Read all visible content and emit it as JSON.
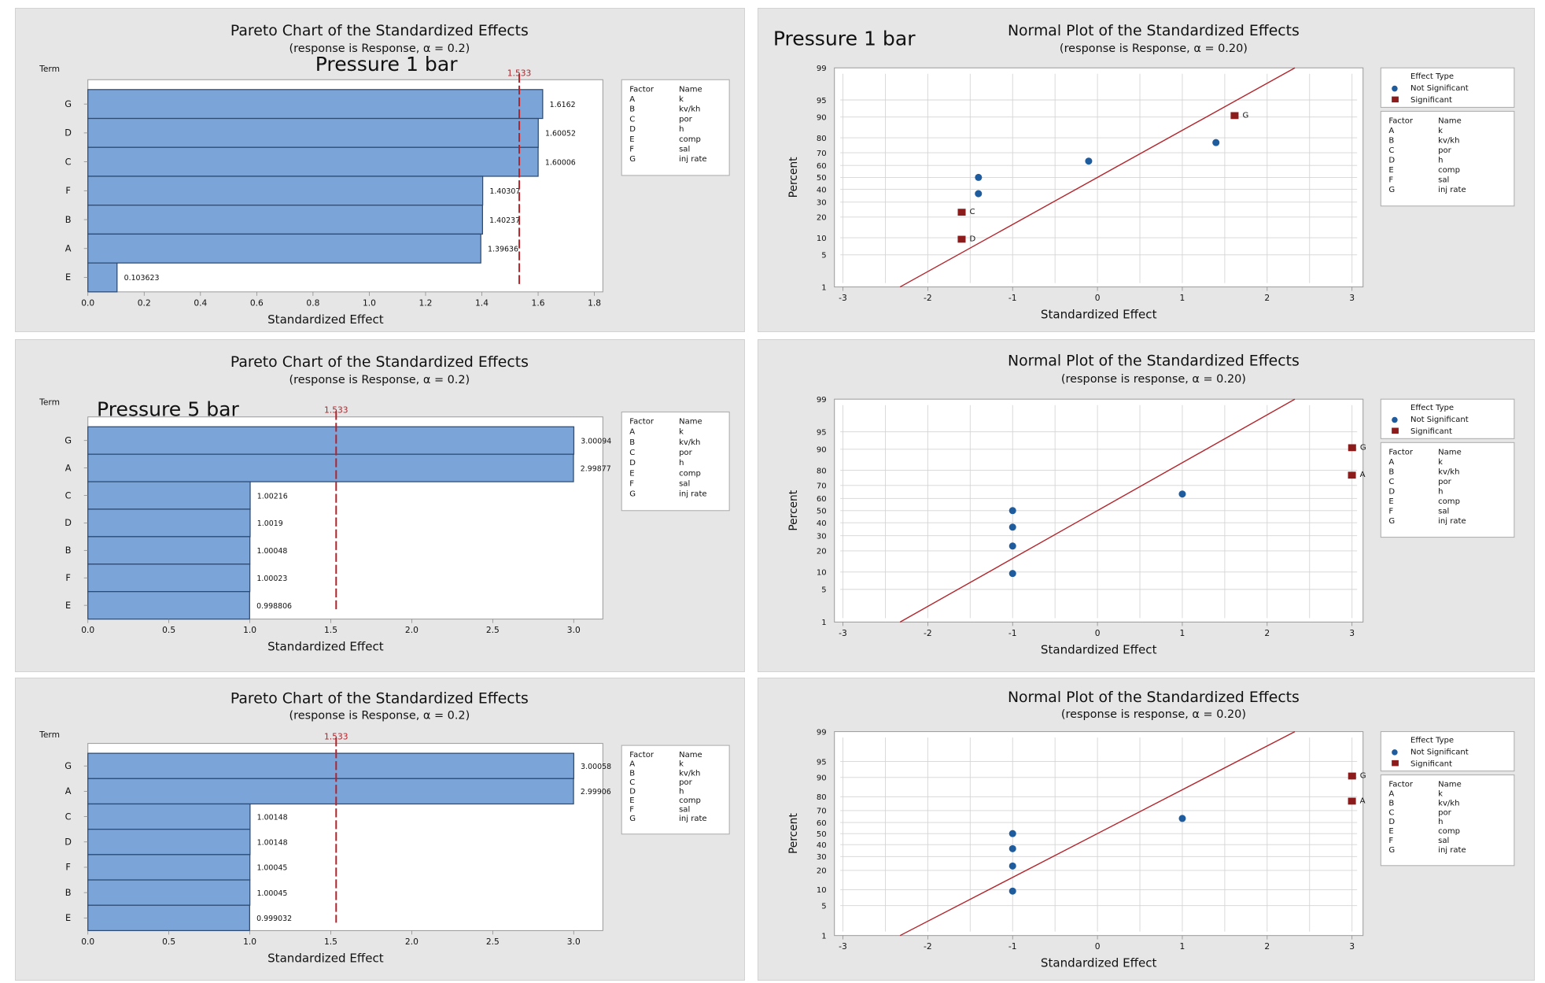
{
  "chart_data": [
    {
      "type": "bar",
      "orientation": "horizontal",
      "title": "Pareto Chart of the Standardized Effects",
      "subtitle": "(response is Response, α = 0.2)",
      "annotation": "Pressure 1 bar",
      "ylabel": "Term",
      "xlabel": "Standardized Effect",
      "categories": [
        "G",
        "D",
        "C",
        "F",
        "B",
        "A",
        "E"
      ],
      "values": [
        1.6162,
        1.60052,
        1.60006,
        1.40307,
        1.40237,
        1.39636,
        0.103623
      ],
      "value_labels": [
        "1.6162",
        "1.60052",
        "1.60006",
        "1.40307",
        "1.40237",
        "1.39636",
        "0.103623"
      ],
      "reference_line": {
        "value": 1.533,
        "label": "1.533"
      },
      "xlim": [
        0,
        1.83
      ],
      "xticks": [
        0,
        0.2,
        0.4,
        0.6,
        0.8,
        1.0,
        1.2,
        1.4,
        1.6,
        1.8
      ],
      "xtick_labels": [
        "0.0",
        "0.2",
        "0.4",
        "0.6",
        "0.8",
        "1.0",
        "1.2",
        "1.4",
        "1.6",
        "1.8"
      ],
      "legend": {
        "headers": [
          "Factor",
          "Name"
        ],
        "rows": [
          [
            "A",
            "k"
          ],
          [
            "B",
            "kv/kh"
          ],
          [
            "C",
            "por"
          ],
          [
            "D",
            "h"
          ],
          [
            "E",
            "comp"
          ],
          [
            "F",
            "sal"
          ],
          [
            "G",
            "inj rate"
          ]
        ]
      },
      "grid": false
    },
    {
      "type": "scatter",
      "title": "Normal Plot of the Standardized Effects",
      "subtitle": "(response is Response, α = 0.20)",
      "annotation": "Pressure 1 bar",
      "xlabel": "Standardized Effect",
      "ylabel": "Percent",
      "yscale": "normal-probability",
      "xlim": [
        -3.1,
        3.13
      ],
      "xticks": [
        -3,
        -2,
        -1,
        0,
        1,
        2,
        3
      ],
      "xtick_labels": [
        "-3",
        "-2",
        "-1",
        "0",
        "1",
        "2",
        "3"
      ],
      "yticks": [
        1,
        5,
        10,
        20,
        30,
        40,
        50,
        60,
        70,
        80,
        90,
        95,
        99
      ],
      "ytick_labels": [
        "1",
        "5",
        "10",
        "20",
        "30",
        "40",
        "50",
        "60",
        "70",
        "80",
        "90",
        "95",
        "99"
      ],
      "reference_line": {
        "mean": 0,
        "sd": 1
      },
      "points": [
        {
          "x": -1.60052,
          "y": 9.46,
          "type": "Significant",
          "label": "D"
        },
        {
          "x": -1.60006,
          "y": 22.97,
          "type": "Significant",
          "label": "C"
        },
        {
          "x": -1.40307,
          "y": 36.49,
          "type": "Not Significant",
          "label": ""
        },
        {
          "x": -1.40237,
          "y": 50.0,
          "type": "Not Significant",
          "label": ""
        },
        {
          "x": -0.103623,
          "y": 63.51,
          "type": "Not Significant",
          "label": ""
        },
        {
          "x": 1.39636,
          "y": 77.03,
          "type": "Not Significant",
          "label": ""
        },
        {
          "x": 1.6162,
          "y": 90.54,
          "type": "Significant",
          "label": "G"
        }
      ],
      "legend": {
        "title": "Effect Type",
        "entries": [
          "Not Significant",
          "Significant"
        ],
        "headers": [
          "Factor",
          "Name"
        ],
        "rows": [
          [
            "A",
            "k"
          ],
          [
            "B",
            "kv/kh"
          ],
          [
            "C",
            "por"
          ],
          [
            "D",
            "h"
          ],
          [
            "E",
            "comp"
          ],
          [
            "F",
            "sal"
          ],
          [
            "G",
            "inj rate"
          ]
        ]
      },
      "grid": true
    },
    {
      "type": "bar",
      "orientation": "horizontal",
      "title": "Pareto Chart of the Standardized Effects",
      "subtitle": "(response is Response, α = 0.2)",
      "annotation": "Pressure 5 bar",
      "ylabel": "Term",
      "xlabel": "Standardized Effect",
      "categories": [
        "G",
        "A",
        "C",
        "D",
        "B",
        "F",
        "E"
      ],
      "values": [
        3.00094,
        2.99877,
        1.00216,
        1.0019,
        1.00048,
        1.00023,
        0.998806
      ],
      "value_labels": [
        "3.00094",
        "2.99877",
        "1.00216",
        "1.0019",
        "1.00048",
        "1.00023",
        "0.998806"
      ],
      "reference_line": {
        "value": 1.533,
        "label": "1.533"
      },
      "xlim": [
        0,
        3.18
      ],
      "xticks": [
        0,
        0.5,
        1.0,
        1.5,
        2.0,
        2.5,
        3.0
      ],
      "xtick_labels": [
        "0.0",
        "0.5",
        "1.0",
        "1.5",
        "2.0",
        "2.5",
        "3.0"
      ],
      "legend": {
        "headers": [
          "Factor",
          "Name"
        ],
        "rows": [
          [
            "A",
            "k"
          ],
          [
            "B",
            "kv/kh"
          ],
          [
            "C",
            "por"
          ],
          [
            "D",
            "h"
          ],
          [
            "E",
            "comp"
          ],
          [
            "F",
            "sal"
          ],
          [
            "G",
            "inj rate"
          ]
        ]
      },
      "grid": false
    },
    {
      "type": "scatter",
      "title": "Normal Plot of the Standardized Effects",
      "subtitle": "(response is response, α = 0.20)",
      "xlabel": "Standardized Effect",
      "ylabel": "Percent",
      "yscale": "normal-probability",
      "xlim": [
        -3.1,
        3.13
      ],
      "xticks": [
        -3,
        -2,
        -1,
        0,
        1,
        2,
        3
      ],
      "xtick_labels": [
        "-3",
        "-2",
        "-1",
        "0",
        "1",
        "2",
        "3"
      ],
      "yticks": [
        1,
        5,
        10,
        20,
        30,
        40,
        50,
        60,
        70,
        80,
        90,
        95,
        99
      ],
      "ytick_labels": [
        "1",
        "5",
        "10",
        "20",
        "30",
        "40",
        "50",
        "60",
        "70",
        "80",
        "90",
        "95",
        "99"
      ],
      "reference_line": {
        "mean": 0,
        "sd": 1
      },
      "points": [
        {
          "x": -1.0,
          "y": 9.46,
          "type": "Not Significant",
          "label": ""
        },
        {
          "x": -1.0,
          "y": 22.97,
          "type": "Not Significant",
          "label": ""
        },
        {
          "x": -1.0,
          "y": 36.49,
          "type": "Not Significant",
          "label": ""
        },
        {
          "x": -1.0,
          "y": 50.0,
          "type": "Not Significant",
          "label": ""
        },
        {
          "x": 1.0,
          "y": 63.51,
          "type": "Not Significant",
          "label": ""
        },
        {
          "x": 2.99877,
          "y": 77.03,
          "type": "Significant",
          "label": "A"
        },
        {
          "x": 3.00094,
          "y": 90.54,
          "type": "Significant",
          "label": "G"
        }
      ],
      "legend": {
        "title": "Effect Type",
        "entries": [
          "Not Significant",
          "Significant"
        ],
        "headers": [
          "Factor",
          "Name"
        ],
        "rows": [
          [
            "A",
            "k"
          ],
          [
            "B",
            "kv/kh"
          ],
          [
            "C",
            "por"
          ],
          [
            "D",
            "h"
          ],
          [
            "E",
            "comp"
          ],
          [
            "F",
            "sal"
          ],
          [
            "G",
            "inj rate"
          ]
        ]
      },
      "grid": true
    },
    {
      "type": "bar",
      "orientation": "horizontal",
      "title": "Pareto Chart of the Standardized Effects",
      "subtitle": "(response is Response, α = 0.2)",
      "ylabel": "Term",
      "xlabel": "Standardized Effect",
      "categories": [
        "G",
        "A",
        "C",
        "D",
        "F",
        "B",
        "E"
      ],
      "values": [
        3.00058,
        2.99906,
        1.00148,
        1.00148,
        1.00045,
        1.00045,
        0.999032
      ],
      "value_labels": [
        "3.00058",
        "2.99906",
        "1.00148",
        "1.00148",
        "1.00045",
        "1.00045",
        "0.999032"
      ],
      "reference_line": {
        "value": 1.533,
        "label": "1.533"
      },
      "xlim": [
        0,
        3.18
      ],
      "xticks": [
        0,
        0.5,
        1.0,
        1.5,
        2.0,
        2.5,
        3.0
      ],
      "xtick_labels": [
        "0.0",
        "0.5",
        "1.0",
        "1.5",
        "2.0",
        "2.5",
        "3.0"
      ],
      "legend": {
        "headers": [
          "Factor",
          "Name"
        ],
        "rows": [
          [
            "A",
            "k"
          ],
          [
            "B",
            "kv/kh"
          ],
          [
            "C",
            "por"
          ],
          [
            "D",
            "h"
          ],
          [
            "E",
            "comp"
          ],
          [
            "F",
            "sal"
          ],
          [
            "G",
            "inj rate"
          ]
        ]
      },
      "grid": false
    },
    {
      "type": "scatter",
      "title": "Normal Plot of the Standardized Effects",
      "subtitle": "(response is response, α = 0.20)",
      "xlabel": "Standardized Effect",
      "ylabel": "Percent",
      "yscale": "normal-probability",
      "xlim": [
        -3.1,
        3.13
      ],
      "xticks": [
        -3,
        -2,
        -1,
        0,
        1,
        2,
        3
      ],
      "xtick_labels": [
        "-3",
        "-2",
        "-1",
        "0",
        "1",
        "2",
        "3"
      ],
      "yticks": [
        1,
        5,
        10,
        20,
        30,
        40,
        50,
        60,
        70,
        80,
        90,
        95,
        99
      ],
      "ytick_labels": [
        "1",
        "5",
        "10",
        "20",
        "30",
        "40",
        "50",
        "60",
        "70",
        "80",
        "90",
        "95",
        "99"
      ],
      "reference_line": {
        "mean": 0,
        "sd": 1
      },
      "points": [
        {
          "x": -1.0,
          "y": 9.46,
          "type": "Not Significant",
          "label": ""
        },
        {
          "x": -1.0,
          "y": 22.97,
          "type": "Not Significant",
          "label": ""
        },
        {
          "x": -1.0,
          "y": 36.49,
          "type": "Not Significant",
          "label": ""
        },
        {
          "x": -1.0,
          "y": 50.0,
          "type": "Not Significant",
          "label": ""
        },
        {
          "x": 1.0,
          "y": 63.51,
          "type": "Not Significant",
          "label": ""
        },
        {
          "x": 2.99906,
          "y": 77.03,
          "type": "Significant",
          "label": "A"
        },
        {
          "x": 3.00058,
          "y": 90.54,
          "type": "Significant",
          "label": "G"
        }
      ],
      "legend": {
        "title": "Effect Type",
        "entries": [
          "Not Significant",
          "Significant"
        ],
        "headers": [
          "Factor",
          "Name"
        ],
        "rows": [
          [
            "A",
            "k"
          ],
          [
            "B",
            "kv/kh"
          ],
          [
            "C",
            "por"
          ],
          [
            "D",
            "h"
          ],
          [
            "E",
            "comp"
          ],
          [
            "F",
            "sal"
          ],
          [
            "G",
            "inj rate"
          ]
        ]
      },
      "grid": true
    }
  ],
  "colors": {
    "bar_fill": "#7ba4d8",
    "bar_border": "#2d4b73",
    "reference_line": "#b3232a",
    "not_significant": "#1f5c9e",
    "significant": "#8c1c1c",
    "panel_background": "#e6e6e6"
  }
}
